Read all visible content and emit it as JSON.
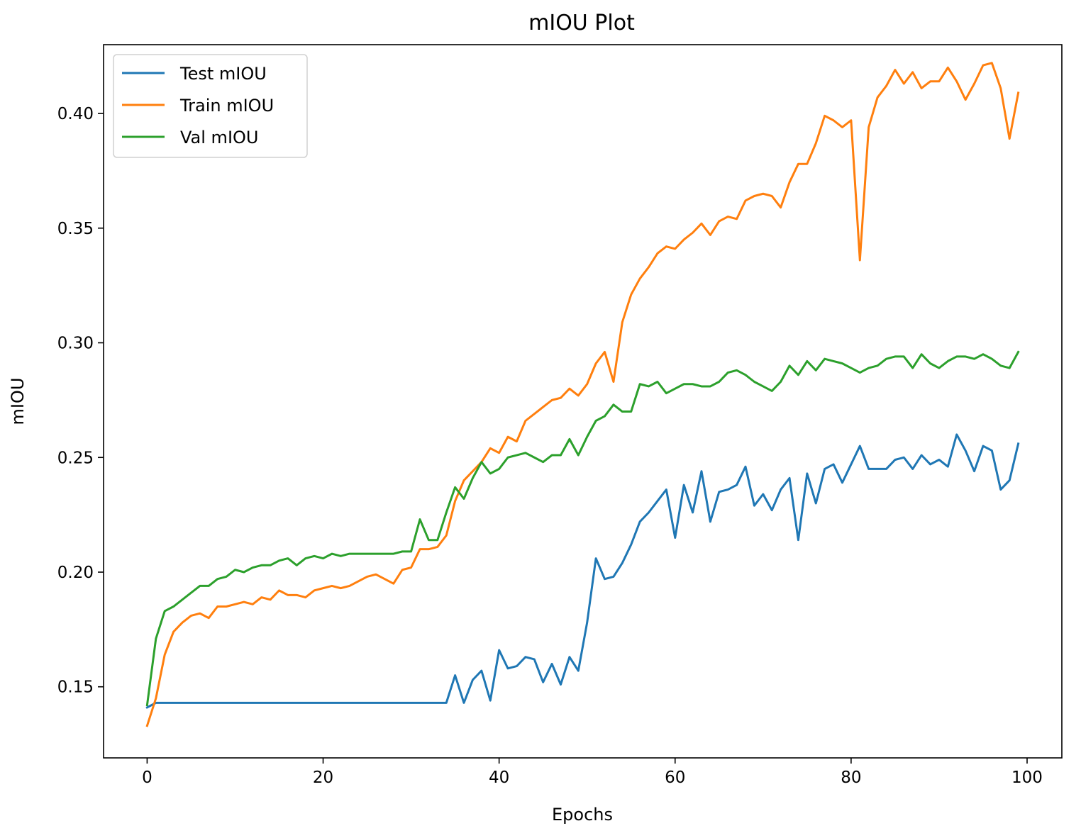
{
  "chart_data": {
    "type": "line",
    "title": "mIOU Plot",
    "xlabel": "Epochs",
    "ylabel": "mIOU",
    "xlim": [
      -4.95,
      103.95
    ],
    "ylim": [
      0.119,
      0.43
    ],
    "xticks": [
      0,
      20,
      40,
      60,
      80,
      100
    ],
    "yticks": [
      0.15,
      0.2,
      0.25,
      0.3,
      0.35,
      0.4
    ],
    "xtick_labels": [
      "0",
      "20",
      "40",
      "60",
      "80",
      "100"
    ],
    "ytick_labels": [
      "0.15",
      "0.20",
      "0.25",
      "0.30",
      "0.35",
      "0.40"
    ],
    "grid": false,
    "legend_position": "upper-left",
    "x": [
      0,
      1,
      2,
      3,
      4,
      5,
      6,
      7,
      8,
      9,
      10,
      11,
      12,
      13,
      14,
      15,
      16,
      17,
      18,
      19,
      20,
      21,
      22,
      23,
      24,
      25,
      26,
      27,
      28,
      29,
      30,
      31,
      32,
      33,
      34,
      35,
      36,
      37,
      38,
      39,
      40,
      41,
      42,
      43,
      44,
      45,
      46,
      47,
      48,
      49,
      50,
      51,
      52,
      53,
      54,
      55,
      56,
      57,
      58,
      59,
      60,
      61,
      62,
      63,
      64,
      65,
      66,
      67,
      68,
      69,
      70,
      71,
      72,
      73,
      74,
      75,
      76,
      77,
      78,
      79,
      80,
      81,
      82,
      83,
      84,
      85,
      86,
      87,
      88,
      89,
      90,
      91,
      92,
      93,
      94,
      95,
      96,
      97,
      98,
      99
    ],
    "series": [
      {
        "name": "Test mIOU",
        "color": "#1f77b4",
        "values": [
          0.141,
          0.143,
          0.143,
          0.143,
          0.143,
          0.143,
          0.143,
          0.143,
          0.143,
          0.143,
          0.143,
          0.143,
          0.143,
          0.143,
          0.143,
          0.143,
          0.143,
          0.143,
          0.143,
          0.143,
          0.143,
          0.143,
          0.143,
          0.143,
          0.143,
          0.143,
          0.143,
          0.143,
          0.143,
          0.143,
          0.143,
          0.143,
          0.143,
          0.143,
          0.143,
          0.155,
          0.143,
          0.153,
          0.157,
          0.144,
          0.166,
          0.158,
          0.159,
          0.163,
          0.162,
          0.152,
          0.16,
          0.151,
          0.163,
          0.157,
          0.178,
          0.206,
          0.197,
          0.198,
          0.204,
          0.212,
          0.222,
          0.226,
          0.231,
          0.236,
          0.215,
          0.238,
          0.226,
          0.244,
          0.222,
          0.235,
          0.236,
          0.238,
          0.246,
          0.229,
          0.234,
          0.227,
          0.236,
          0.241,
          0.214,
          0.243,
          0.23,
          0.245,
          0.247,
          0.239,
          0.247,
          0.255,
          0.245,
          0.245,
          0.245,
          0.249,
          0.25,
          0.245,
          0.251,
          0.247,
          0.249,
          0.246,
          0.26,
          0.253,
          0.244,
          0.255,
          0.253,
          0.236,
          0.24,
          0.256
        ]
      },
      {
        "name": "Train mIOU",
        "color": "#ff7f0e",
        "values": [
          0.133,
          0.145,
          0.164,
          0.174,
          0.178,
          0.181,
          0.182,
          0.18,
          0.185,
          0.185,
          0.186,
          0.187,
          0.186,
          0.189,
          0.188,
          0.192,
          0.19,
          0.19,
          0.189,
          0.192,
          0.193,
          0.194,
          0.193,
          0.194,
          0.196,
          0.198,
          0.199,
          0.197,
          0.195,
          0.201,
          0.202,
          0.21,
          0.21,
          0.211,
          0.216,
          0.231,
          0.24,
          0.244,
          0.248,
          0.254,
          0.252,
          0.259,
          0.257,
          0.266,
          0.269,
          0.272,
          0.275,
          0.276,
          0.28,
          0.277,
          0.282,
          0.291,
          0.296,
          0.283,
          0.309,
          0.321,
          0.328,
          0.333,
          0.339,
          0.342,
          0.341,
          0.345,
          0.348,
          0.352,
          0.347,
          0.353,
          0.355,
          0.354,
          0.362,
          0.364,
          0.365,
          0.364,
          0.359,
          0.37,
          0.378,
          0.378,
          0.387,
          0.399,
          0.397,
          0.394,
          0.397,
          0.336,
          0.394,
          0.407,
          0.412,
          0.419,
          0.413,
          0.418,
          0.411,
          0.414,
          0.414,
          0.42,
          0.414,
          0.406,
          0.413,
          0.421,
          0.422,
          0.411,
          0.389,
          0.409
        ]
      },
      {
        "name": "Val mIOU",
        "color": "#2ca02c",
        "values": [
          0.142,
          0.171,
          0.183,
          0.185,
          0.188,
          0.191,
          0.194,
          0.194,
          0.197,
          0.198,
          0.201,
          0.2,
          0.202,
          0.203,
          0.203,
          0.205,
          0.206,
          0.203,
          0.206,
          0.207,
          0.206,
          0.208,
          0.207,
          0.208,
          0.208,
          0.208,
          0.208,
          0.208,
          0.208,
          0.209,
          0.209,
          0.223,
          0.214,
          0.214,
          0.226,
          0.237,
          0.232,
          0.241,
          0.248,
          0.243,
          0.245,
          0.25,
          0.251,
          0.252,
          0.25,
          0.248,
          0.251,
          0.251,
          0.258,
          0.251,
          0.259,
          0.266,
          0.268,
          0.273,
          0.27,
          0.27,
          0.282,
          0.281,
          0.283,
          0.278,
          0.28,
          0.282,
          0.282,
          0.281,
          0.281,
          0.283,
          0.287,
          0.288,
          0.286,
          0.283,
          0.281,
          0.279,
          0.283,
          0.29,
          0.286,
          0.292,
          0.288,
          0.293,
          0.292,
          0.291,
          0.289,
          0.287,
          0.289,
          0.29,
          0.293,
          0.294,
          0.294,
          0.289,
          0.295,
          0.291,
          0.289,
          0.292,
          0.294,
          0.294,
          0.293,
          0.295,
          0.293,
          0.29,
          0.289,
          0.296
        ]
      }
    ]
  }
}
